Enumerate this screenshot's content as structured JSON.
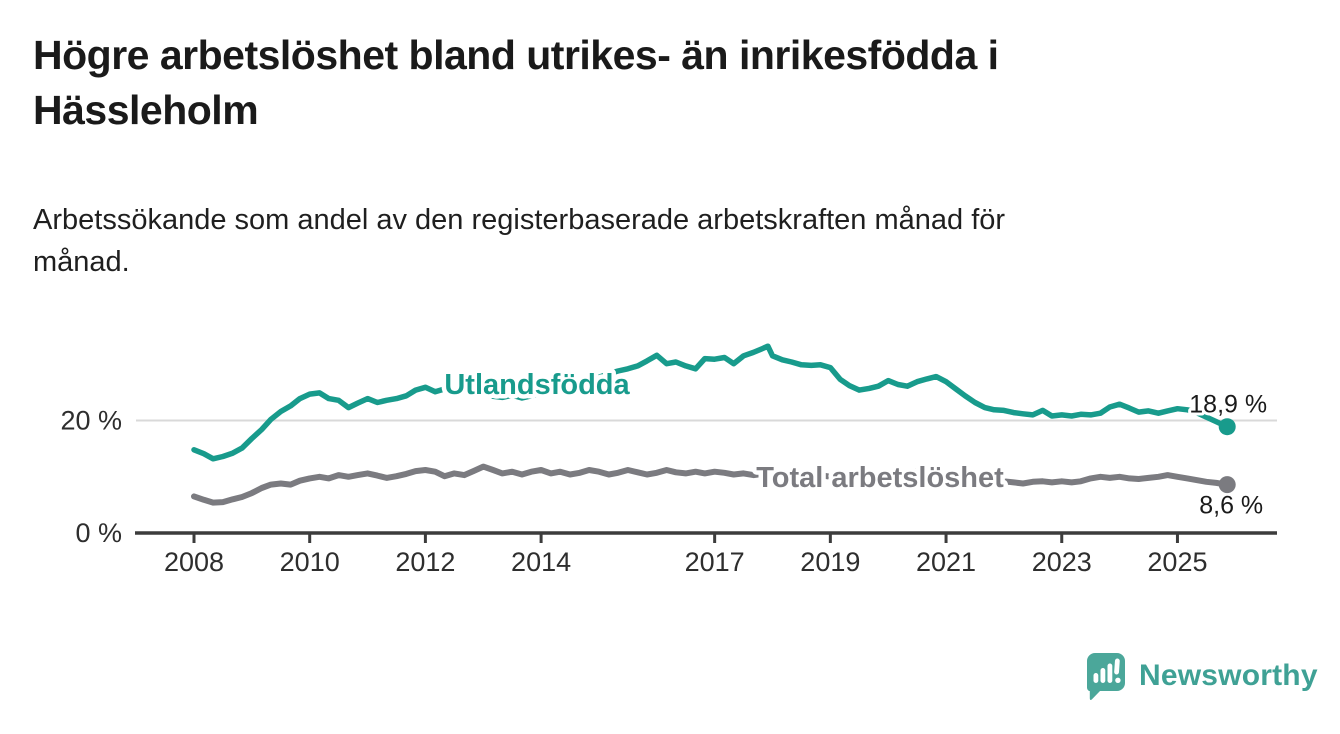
{
  "header": {
    "title_lines": [
      "Högre arbetslöshet bland utrikes- än inrikesfödda i",
      "Hässleholm"
    ],
    "subtitle_lines": [
      "Arbetssökande som andel av den registerbaserade arbetskraften månad för",
      "månad."
    ]
  },
  "chart_data": {
    "type": "line",
    "title": "Högre arbetslöshet bland utrikes- än inrikesfödda i Hässleholm",
    "subtitle": "Arbetssökande som andel av den registerbaserade arbetskraften månad för månad.",
    "x_axis": {
      "ticks": [
        2008,
        2010,
        2012,
        2014,
        2017,
        2019,
        2021,
        2023,
        2025
      ],
      "range": [
        2008,
        2025.86
      ]
    },
    "y_axis": {
      "unit": "%",
      "ticks": [
        {
          "value": 20,
          "label": "20 %"
        },
        {
          "value": 0,
          "label": "0 %"
        }
      ],
      "gridlines": [
        20
      ],
      "range": [
        0,
        35
      ]
    },
    "legend_position": "inline-labels-on-lines",
    "series": [
      {
        "name": "Utlandsfödda",
        "color": "#189b8c",
        "end_label": "18,9 %",
        "end_value": 18.9,
        "points": [
          [
            2008.0,
            14.8
          ],
          [
            2008.17,
            14.1
          ],
          [
            2008.33,
            13.2
          ],
          [
            2008.5,
            13.6
          ],
          [
            2008.67,
            14.2
          ],
          [
            2008.83,
            15.1
          ],
          [
            2009.0,
            16.8
          ],
          [
            2009.17,
            18.4
          ],
          [
            2009.33,
            20.2
          ],
          [
            2009.5,
            21.6
          ],
          [
            2009.67,
            22.6
          ],
          [
            2009.83,
            23.9
          ],
          [
            2010.0,
            24.7
          ],
          [
            2010.17,
            24.9
          ],
          [
            2010.33,
            23.9
          ],
          [
            2010.5,
            23.6
          ],
          [
            2010.67,
            22.3
          ],
          [
            2010.83,
            23.1
          ],
          [
            2011.0,
            23.9
          ],
          [
            2011.17,
            23.2
          ],
          [
            2011.33,
            23.6
          ],
          [
            2011.5,
            23.9
          ],
          [
            2011.67,
            24.4
          ],
          [
            2011.83,
            25.4
          ],
          [
            2012.0,
            25.9
          ],
          [
            2012.17,
            25.1
          ],
          [
            2012.33,
            25.6
          ],
          [
            2012.5,
            25.0
          ],
          [
            2012.67,
            25.5
          ],
          [
            2012.83,
            25.1
          ],
          [
            2013.0,
            24.8
          ],
          [
            2013.17,
            24.3
          ],
          [
            2013.33,
            24.1
          ],
          [
            2013.5,
            24.5
          ],
          [
            2013.67,
            24.0
          ],
          [
            2013.83,
            24.4
          ],
          [
            2014.0,
            24.8
          ],
          [
            2014.17,
            25.2
          ],
          [
            2014.33,
            25.7
          ],
          [
            2014.5,
            26.1
          ],
          [
            2014.67,
            26.5
          ],
          [
            2014.83,
            27.1
          ],
          [
            2015.0,
            27.7
          ],
          [
            2015.17,
            28.3
          ],
          [
            2015.33,
            28.8
          ],
          [
            2015.5,
            29.2
          ],
          [
            2015.67,
            29.7
          ],
          [
            2015.83,
            30.6
          ],
          [
            2016.0,
            31.6
          ],
          [
            2016.17,
            30.1
          ],
          [
            2016.33,
            30.4
          ],
          [
            2016.5,
            29.7
          ],
          [
            2016.67,
            29.2
          ],
          [
            2016.83,
            31.0
          ],
          [
            2017.0,
            30.9
          ],
          [
            2017.17,
            31.2
          ],
          [
            2017.33,
            30.1
          ],
          [
            2017.5,
            31.5
          ],
          [
            2017.67,
            32.1
          ],
          [
            2017.83,
            32.8
          ],
          [
            2017.92,
            33.2
          ],
          [
            2018.0,
            31.5
          ],
          [
            2018.17,
            30.8
          ],
          [
            2018.33,
            30.4
          ],
          [
            2018.5,
            29.9
          ],
          [
            2018.67,
            29.8
          ],
          [
            2018.83,
            29.9
          ],
          [
            2019.0,
            29.4
          ],
          [
            2019.17,
            27.3
          ],
          [
            2019.33,
            26.2
          ],
          [
            2019.5,
            25.4
          ],
          [
            2019.67,
            25.7
          ],
          [
            2019.83,
            26.1
          ],
          [
            2020.0,
            27.1
          ],
          [
            2020.17,
            26.4
          ],
          [
            2020.33,
            26.1
          ],
          [
            2020.5,
            26.9
          ],
          [
            2020.67,
            27.4
          ],
          [
            2020.83,
            27.8
          ],
          [
            2021.0,
            26.9
          ],
          [
            2021.17,
            25.6
          ],
          [
            2021.33,
            24.4
          ],
          [
            2021.5,
            23.2
          ],
          [
            2021.67,
            22.3
          ],
          [
            2021.83,
            21.9
          ],
          [
            2022.0,
            21.8
          ],
          [
            2022.17,
            21.4
          ],
          [
            2022.33,
            21.2
          ],
          [
            2022.5,
            21.0
          ],
          [
            2022.67,
            21.8
          ],
          [
            2022.83,
            20.8
          ],
          [
            2023.0,
            21.0
          ],
          [
            2023.17,
            20.8
          ],
          [
            2023.33,
            21.1
          ],
          [
            2023.5,
            21.0
          ],
          [
            2023.67,
            21.3
          ],
          [
            2023.83,
            22.4
          ],
          [
            2024.0,
            22.9
          ],
          [
            2024.17,
            22.2
          ],
          [
            2024.33,
            21.5
          ],
          [
            2024.5,
            21.7
          ],
          [
            2024.67,
            21.3
          ],
          [
            2024.83,
            21.7
          ],
          [
            2025.0,
            22.1
          ],
          [
            2025.17,
            21.9
          ],
          [
            2025.33,
            21.4
          ],
          [
            2025.5,
            20.6
          ],
          [
            2025.67,
            19.8
          ],
          [
            2025.86,
            18.9
          ]
        ]
      },
      {
        "name": "Total arbetslöshet",
        "color": "#7b7b80",
        "end_label": "8,6 %",
        "end_value": 8.6,
        "points": [
          [
            2008.0,
            6.5
          ],
          [
            2008.17,
            5.9
          ],
          [
            2008.33,
            5.4
          ],
          [
            2008.5,
            5.5
          ],
          [
            2008.67,
            6.0
          ],
          [
            2008.83,
            6.4
          ],
          [
            2009.0,
            7.1
          ],
          [
            2009.17,
            8.0
          ],
          [
            2009.33,
            8.6
          ],
          [
            2009.5,
            8.8
          ],
          [
            2009.67,
            8.6
          ],
          [
            2009.83,
            9.3
          ],
          [
            2010.0,
            9.7
          ],
          [
            2010.17,
            10.0
          ],
          [
            2010.33,
            9.7
          ],
          [
            2010.5,
            10.3
          ],
          [
            2010.67,
            10.0
          ],
          [
            2010.83,
            10.3
          ],
          [
            2011.0,
            10.6
          ],
          [
            2011.17,
            10.2
          ],
          [
            2011.33,
            9.8
          ],
          [
            2011.5,
            10.1
          ],
          [
            2011.67,
            10.5
          ],
          [
            2011.83,
            11.0
          ],
          [
            2012.0,
            11.2
          ],
          [
            2012.17,
            10.9
          ],
          [
            2012.33,
            10.1
          ],
          [
            2012.5,
            10.6
          ],
          [
            2012.67,
            10.3
          ],
          [
            2012.83,
            11.0
          ],
          [
            2013.0,
            11.8
          ],
          [
            2013.17,
            11.2
          ],
          [
            2013.33,
            10.6
          ],
          [
            2013.5,
            10.9
          ],
          [
            2013.67,
            10.4
          ],
          [
            2013.83,
            10.9
          ],
          [
            2014.0,
            11.2
          ],
          [
            2014.17,
            10.6
          ],
          [
            2014.33,
            10.9
          ],
          [
            2014.5,
            10.4
          ],
          [
            2014.67,
            10.7
          ],
          [
            2014.83,
            11.2
          ],
          [
            2015.0,
            10.9
          ],
          [
            2015.17,
            10.4
          ],
          [
            2015.33,
            10.7
          ],
          [
            2015.5,
            11.2
          ],
          [
            2015.67,
            10.8
          ],
          [
            2015.83,
            10.4
          ],
          [
            2016.0,
            10.7
          ],
          [
            2016.17,
            11.2
          ],
          [
            2016.33,
            10.8
          ],
          [
            2016.5,
            10.6
          ],
          [
            2016.67,
            10.9
          ],
          [
            2016.83,
            10.6
          ],
          [
            2017.0,
            10.9
          ],
          [
            2017.17,
            10.7
          ],
          [
            2017.33,
            10.4
          ],
          [
            2017.5,
            10.6
          ],
          [
            2017.67,
            10.3
          ],
          [
            2017.83,
            10.5
          ],
          [
            2018.0,
            10.3
          ],
          [
            2018.17,
            10.5
          ],
          [
            2018.33,
            10.2
          ],
          [
            2018.5,
            10.4
          ],
          [
            2018.67,
            10.1
          ],
          [
            2018.83,
            10.3
          ],
          [
            2019.0,
            10.0
          ],
          [
            2019.17,
            9.8
          ],
          [
            2019.33,
            9.9
          ],
          [
            2019.5,
            9.7
          ],
          [
            2019.67,
            9.9
          ],
          [
            2019.83,
            10.1
          ],
          [
            2020.0,
            10.0
          ],
          [
            2020.17,
            10.4
          ],
          [
            2020.33,
            10.8
          ],
          [
            2020.5,
            11.0
          ],
          [
            2020.67,
            10.8
          ],
          [
            2020.83,
            10.9
          ],
          [
            2021.0,
            10.6
          ],
          [
            2021.17,
            10.4
          ],
          [
            2021.33,
            10.1
          ],
          [
            2021.5,
            9.9
          ],
          [
            2021.67,
            9.6
          ],
          [
            2021.83,
            9.4
          ],
          [
            2022.0,
            9.2
          ],
          [
            2022.17,
            9.0
          ],
          [
            2022.33,
            8.8
          ],
          [
            2022.5,
            9.1
          ],
          [
            2022.67,
            9.2
          ],
          [
            2022.83,
            9.0
          ],
          [
            2023.0,
            9.2
          ],
          [
            2023.17,
            9.0
          ],
          [
            2023.33,
            9.2
          ],
          [
            2023.5,
            9.7
          ],
          [
            2023.67,
            10.0
          ],
          [
            2023.83,
            9.8
          ],
          [
            2024.0,
            10.0
          ],
          [
            2024.17,
            9.7
          ],
          [
            2024.33,
            9.6
          ],
          [
            2024.5,
            9.8
          ],
          [
            2024.67,
            10.0
          ],
          [
            2024.83,
            10.3
          ],
          [
            2025.0,
            10.0
          ],
          [
            2025.17,
            9.7
          ],
          [
            2025.33,
            9.4
          ],
          [
            2025.5,
            9.1
          ],
          [
            2025.67,
            8.9
          ],
          [
            2025.86,
            8.6
          ]
        ]
      }
    ]
  },
  "footer": {
    "brand": "Newsworthy",
    "logo_icon": "speech-bubble-bar-chart-icon"
  },
  "colors": {
    "accent_teal": "#189b8c",
    "series_gray": "#7b7b80",
    "logo_teal": "#4ba79a",
    "text_dark": "#1a1a1a",
    "axis": "#3c3c3c",
    "gridline": "#d9d9d9"
  }
}
